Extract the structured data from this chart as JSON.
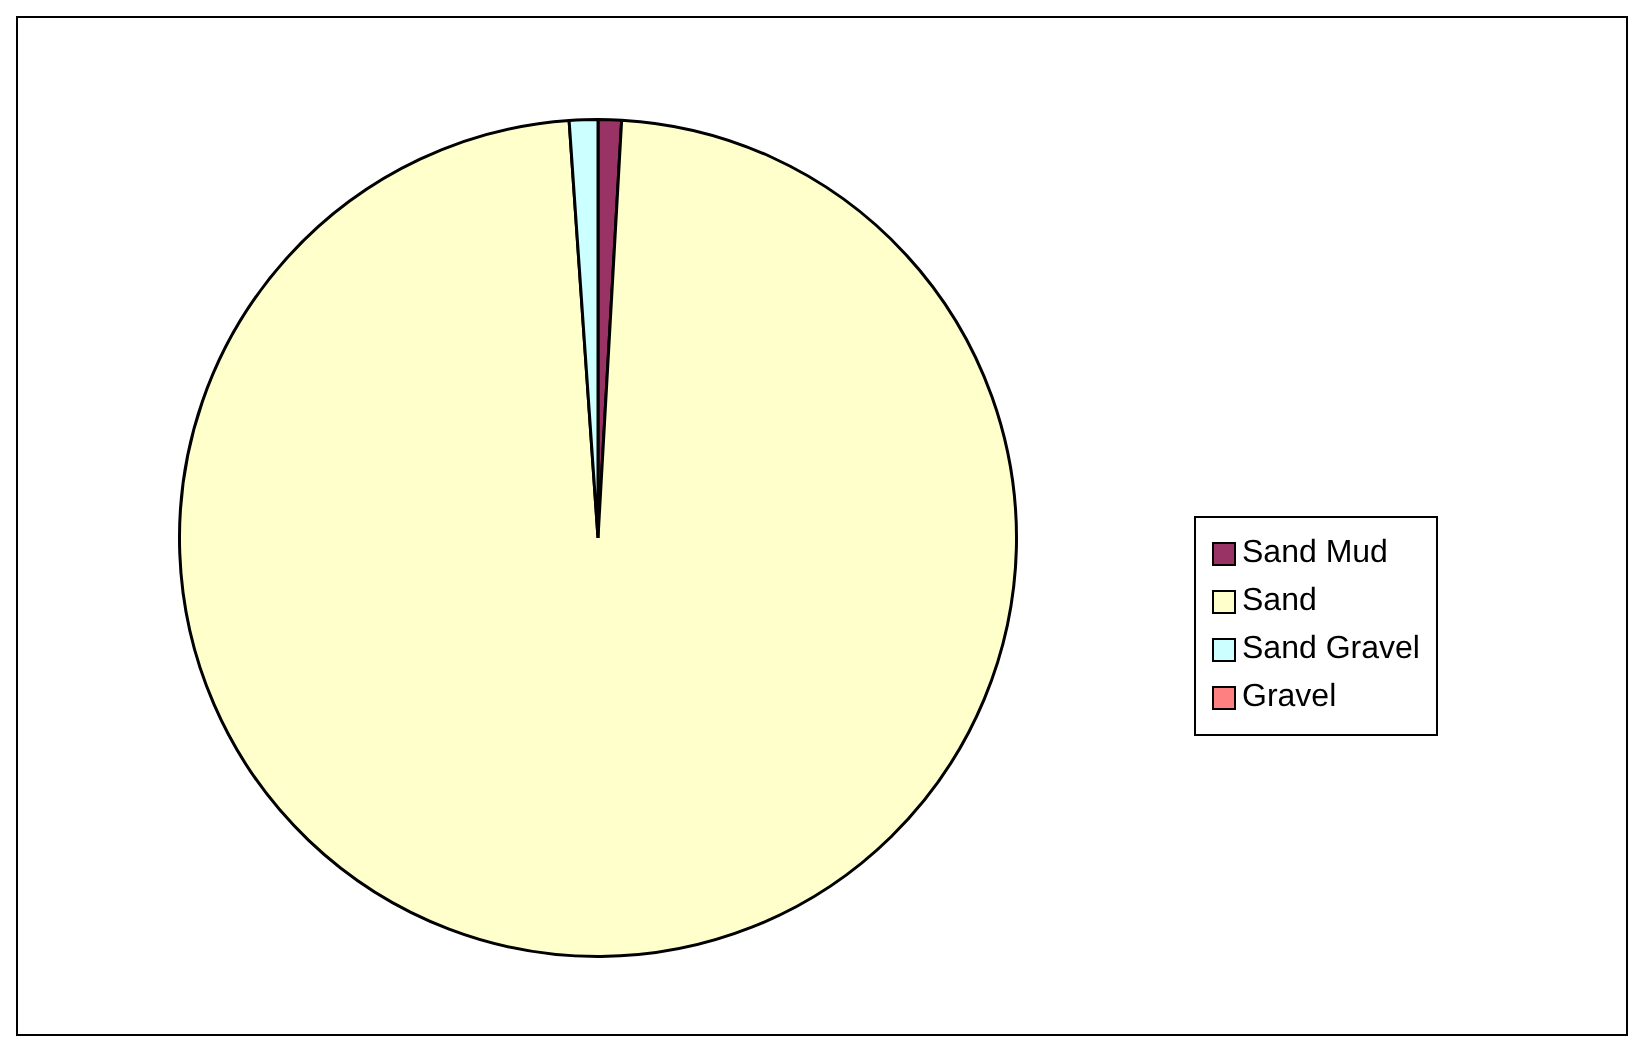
{
  "chart_data": {
    "type": "pie",
    "categories": [
      "Sand Mud",
      "Sand",
      "Sand Gravel",
      "Gravel"
    ],
    "values": [
      0.9,
      98,
      1.1,
      0
    ],
    "colors": [
      "#993366",
      "#ffffcc",
      "#ccffff",
      "#ff8080"
    ],
    "legend": "right"
  }
}
